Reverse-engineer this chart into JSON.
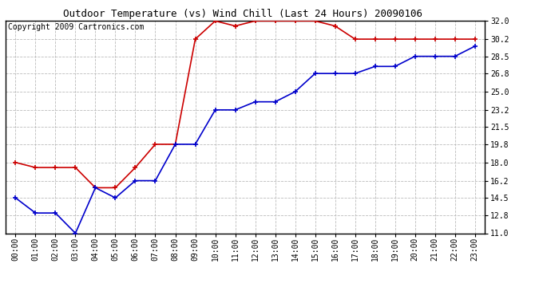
{
  "title": "Outdoor Temperature (vs) Wind Chill (Last 24 Hours) 20090106",
  "copyright": "Copyright 2009 Cartronics.com",
  "x_labels": [
    "00:00",
    "01:00",
    "02:00",
    "03:00",
    "04:00",
    "05:00",
    "06:00",
    "07:00",
    "08:00",
    "09:00",
    "10:00",
    "11:00",
    "12:00",
    "13:00",
    "14:00",
    "15:00",
    "16:00",
    "17:00",
    "18:00",
    "19:00",
    "20:00",
    "21:00",
    "22:00",
    "23:00"
  ],
  "temp_red": [
    18.0,
    17.5,
    17.5,
    17.5,
    15.5,
    15.5,
    17.5,
    19.8,
    19.8,
    30.2,
    32.0,
    31.5,
    32.0,
    32.0,
    32.0,
    32.0,
    31.5,
    30.2,
    30.2,
    30.2,
    30.2,
    30.2,
    30.2,
    30.2
  ],
  "wind_chill_blue": [
    14.5,
    13.0,
    13.0,
    11.0,
    15.5,
    14.5,
    16.2,
    16.2,
    19.8,
    19.8,
    23.2,
    23.2,
    24.0,
    24.0,
    25.0,
    26.8,
    26.8,
    26.8,
    27.5,
    27.5,
    28.5,
    28.5,
    28.5,
    29.5
  ],
  "y_ticks": [
    11.0,
    12.8,
    14.5,
    16.2,
    18.0,
    19.8,
    21.5,
    23.2,
    25.0,
    26.8,
    28.5,
    30.2,
    32.0
  ],
  "y_min": 11.0,
  "y_max": 32.0,
  "red_color": "#cc0000",
  "blue_color": "#0000cc",
  "bg_color": "#ffffff",
  "grid_color": "#bbbbbb",
  "title_fontsize": 9,
  "copyright_fontsize": 7,
  "tick_fontsize": 7
}
